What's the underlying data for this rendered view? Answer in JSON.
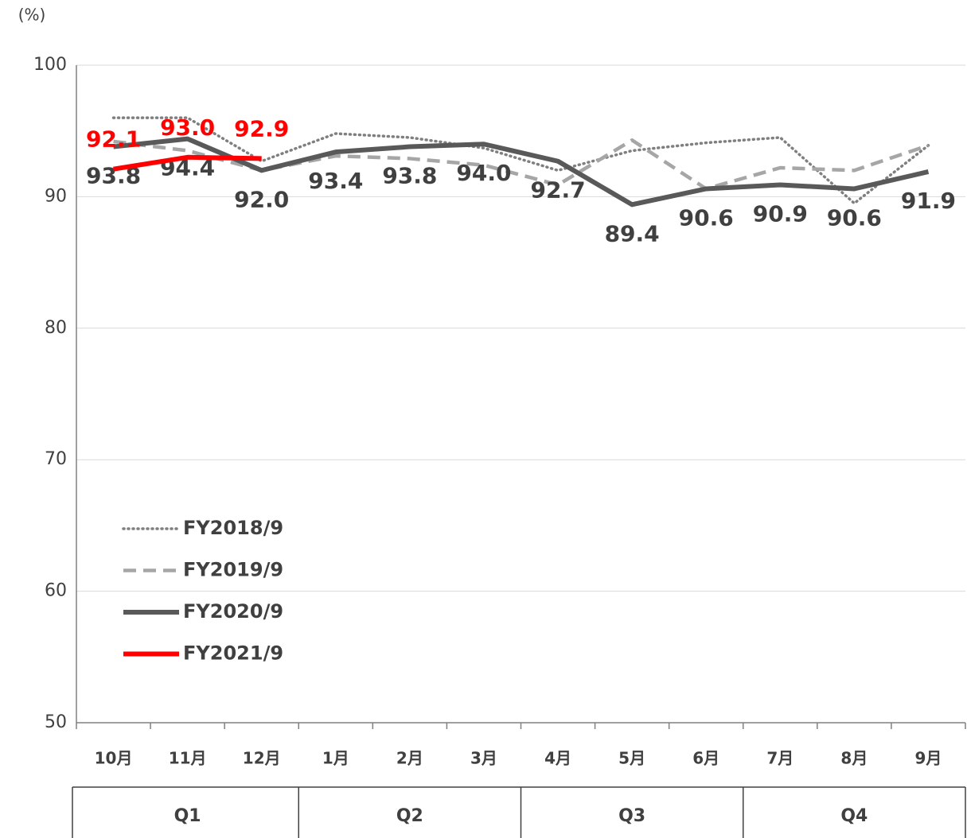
{
  "chart_data": {
    "type": "line",
    "y_label": "(%)",
    "categories": [
      "10月",
      "11月",
      "12月",
      "1月",
      "2月",
      "3月",
      "4月",
      "5月",
      "6月",
      "7月",
      "8月",
      "9月"
    ],
    "quarters": [
      "Q1",
      "Q2",
      "Q3",
      "Q4"
    ],
    "ylim": [
      50,
      100
    ],
    "yticks": [
      50,
      60,
      70,
      80,
      90,
      100
    ],
    "grid": true,
    "legend": "lower-left",
    "series": [
      {
        "name": "FY2018/9",
        "color": "#7f7f7f",
        "line_style": "dotted",
        "values": [
          96.0,
          96.0,
          92.7,
          94.8,
          94.5,
          93.7,
          92.0,
          93.5,
          94.1,
          94.5,
          89.5,
          93.9
        ]
      },
      {
        "name": "FY2019/9",
        "color": "#a6a6a6",
        "line_style": "dashed",
        "values": [
          94.2,
          93.5,
          92.0,
          93.1,
          92.9,
          92.4,
          90.9,
          94.3,
          90.6,
          92.2,
          92.0,
          93.9
        ]
      },
      {
        "name": "FY2020/9",
        "color": "#595959",
        "line_style": "solid",
        "values": [
          93.8,
          94.4,
          92.0,
          93.4,
          93.8,
          94.0,
          92.7,
          89.4,
          90.6,
          90.9,
          90.6,
          91.9
        ],
        "value_labels": [
          "93.8",
          "94.4",
          "92.0",
          "93.4",
          "93.8",
          "94.0",
          "92.7",
          "89.4",
          "90.6",
          "90.9",
          "90.6",
          "91.9"
        ]
      },
      {
        "name": "FY2021/9",
        "color": "#ff0000",
        "line_style": "solid",
        "values": [
          92.1,
          93.0,
          92.9,
          null,
          null,
          null,
          null,
          null,
          null,
          null,
          null,
          null
        ],
        "value_labels": [
          "92.1",
          "93.0",
          "92.9",
          null,
          null,
          null,
          null,
          null,
          null,
          null,
          null,
          null
        ]
      }
    ]
  }
}
